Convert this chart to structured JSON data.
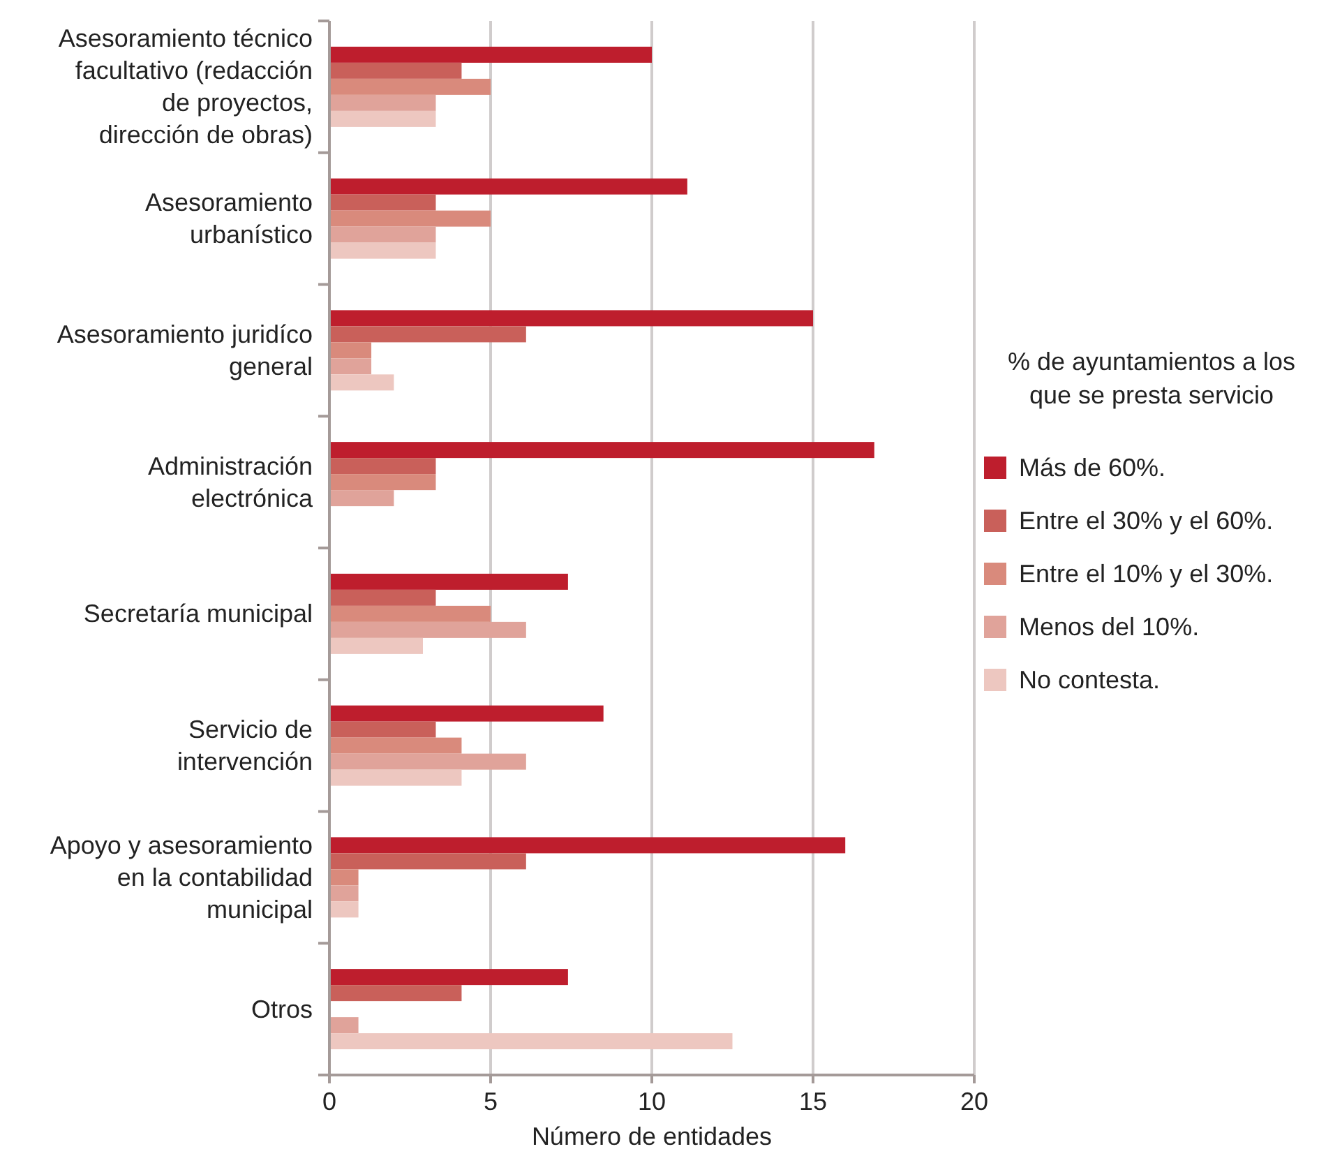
{
  "chart_data": {
    "type": "bar",
    "orientation": "horizontal",
    "xlabel": "Número de entidades",
    "legend_title": "% de ayuntamientos a los que se presta servicio",
    "categories": [
      "Asesoramiento técnico facultativo (redacción de proyectos, dirección de obras)",
      "Asesoramiento urbanístico",
      "Asesoramiento juridíco general",
      "Administración electrónica",
      "Secretaría municipal",
      "Servicio de intervención",
      "Apoyo y asesoramiento en la contabilidad municipal",
      "Otros"
    ],
    "series": [
      {
        "name": "Más de 60%.",
        "color": "#be1e2d",
        "values": [
          10,
          11.1,
          15,
          16.9,
          7.4,
          8.5,
          16,
          7.4
        ]
      },
      {
        "name": "Entre el 30% y el 60%.",
        "color": "#c9605a",
        "values": [
          4.1,
          3.3,
          6.1,
          3.3,
          3.3,
          3.3,
          6.1,
          4.1
        ]
      },
      {
        "name": "Entre el 10% y el 30%.",
        "color": "#d98a7c",
        "values": [
          5,
          5,
          1.3,
          3.3,
          5,
          4.1,
          0.9,
          0
        ]
      },
      {
        "name": "Menos del 10%.",
        "color": "#e0a39a",
        "values": [
          3.3,
          3.3,
          1.3,
          2,
          6.1,
          6.1,
          0.9,
          0.9
        ]
      },
      {
        "name": "No contesta.",
        "color": "#edc7c0",
        "values": [
          3.3,
          3.3,
          2,
          0,
          2.9,
          4.1,
          0.9,
          12.5
        ]
      }
    ],
    "xlim": [
      0,
      20
    ],
    "xticks": [
      0,
      5,
      10,
      15,
      20
    ],
    "grid": "x",
    "legend": "right"
  }
}
